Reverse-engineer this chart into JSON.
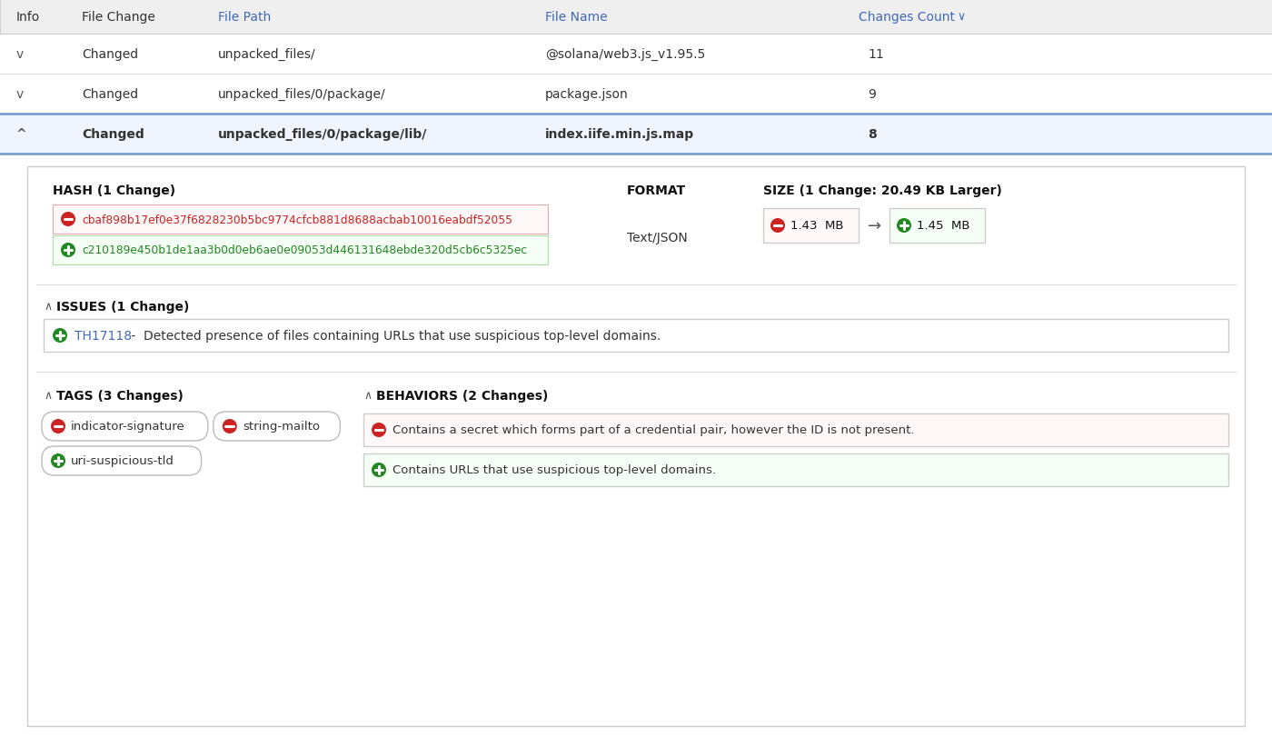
{
  "bg_color": "#ffffff",
  "header_bg": "#efefef",
  "header_text_color": "#333333",
  "link_color": "#4169b8",
  "body_text_color": "#333333",
  "bold_text_color": "#111111",
  "selected_row_border": "#7099cc",
  "selected_row_bg": "#f0f4fc",
  "table_border_color": "#cccccc",
  "rows": [
    {
      "arrow": "v",
      "change": "Changed",
      "path": "unpacked_files/",
      "name": "@solana/web3.js_v1.95.5",
      "count": "11",
      "selected": false
    },
    {
      "arrow": "v",
      "change": "Changed",
      "path": "unpacked_files/0/package/",
      "name": "package.json",
      "count": "9",
      "selected": false
    },
    {
      "arrow": "^",
      "change": "Changed",
      "path": "unpacked_files/0/package/lib/",
      "name": "index.iife.min.js.map",
      "count": "8",
      "selected": true
    }
  ],
  "hash_title": "HASH (1 Change)",
  "hash_old": "cbaf898b17ef0e37f6828230b5bc9774cfcb881d8688acbab10016eabdf52055",
  "hash_new": "c210189e450b1de1aa3b0d0eb6ae0e09053d446131648ebde320d5cb6c5325ec",
  "format_title": "FORMAT",
  "format_value": "Text/JSON",
  "size_title": "SIZE (1 Change: 20.49 KB Larger)",
  "size_old": "1.43  MB",
  "size_new": "1.45  MB",
  "issues_title": "ISSUES (1 Change)",
  "issue_tag": "TH17118",
  "issue_text": " -  Detected presence of files containing URLs that use suspicious top-level domains.",
  "tags_title": "TAGS (3 Changes)",
  "tags_removed": [
    "indicator-signature",
    "string-mailto"
  ],
  "tags_added": [
    "uri-suspicious-tld"
  ],
  "behaviors_title": "BEHAVIORS (2 Changes)",
  "behaviors_removed": [
    "Contains a secret which forms part of a credential pair, however the ID is not present."
  ],
  "behaviors_added": [
    "Contains URLs that use suspicious top-level domains."
  ],
  "red_color": "#cc2222",
  "green_color": "#228822",
  "inner_panel_bg": "#ffffff",
  "inner_panel_border": "#cccccc",
  "sep_color": "#dddddd"
}
